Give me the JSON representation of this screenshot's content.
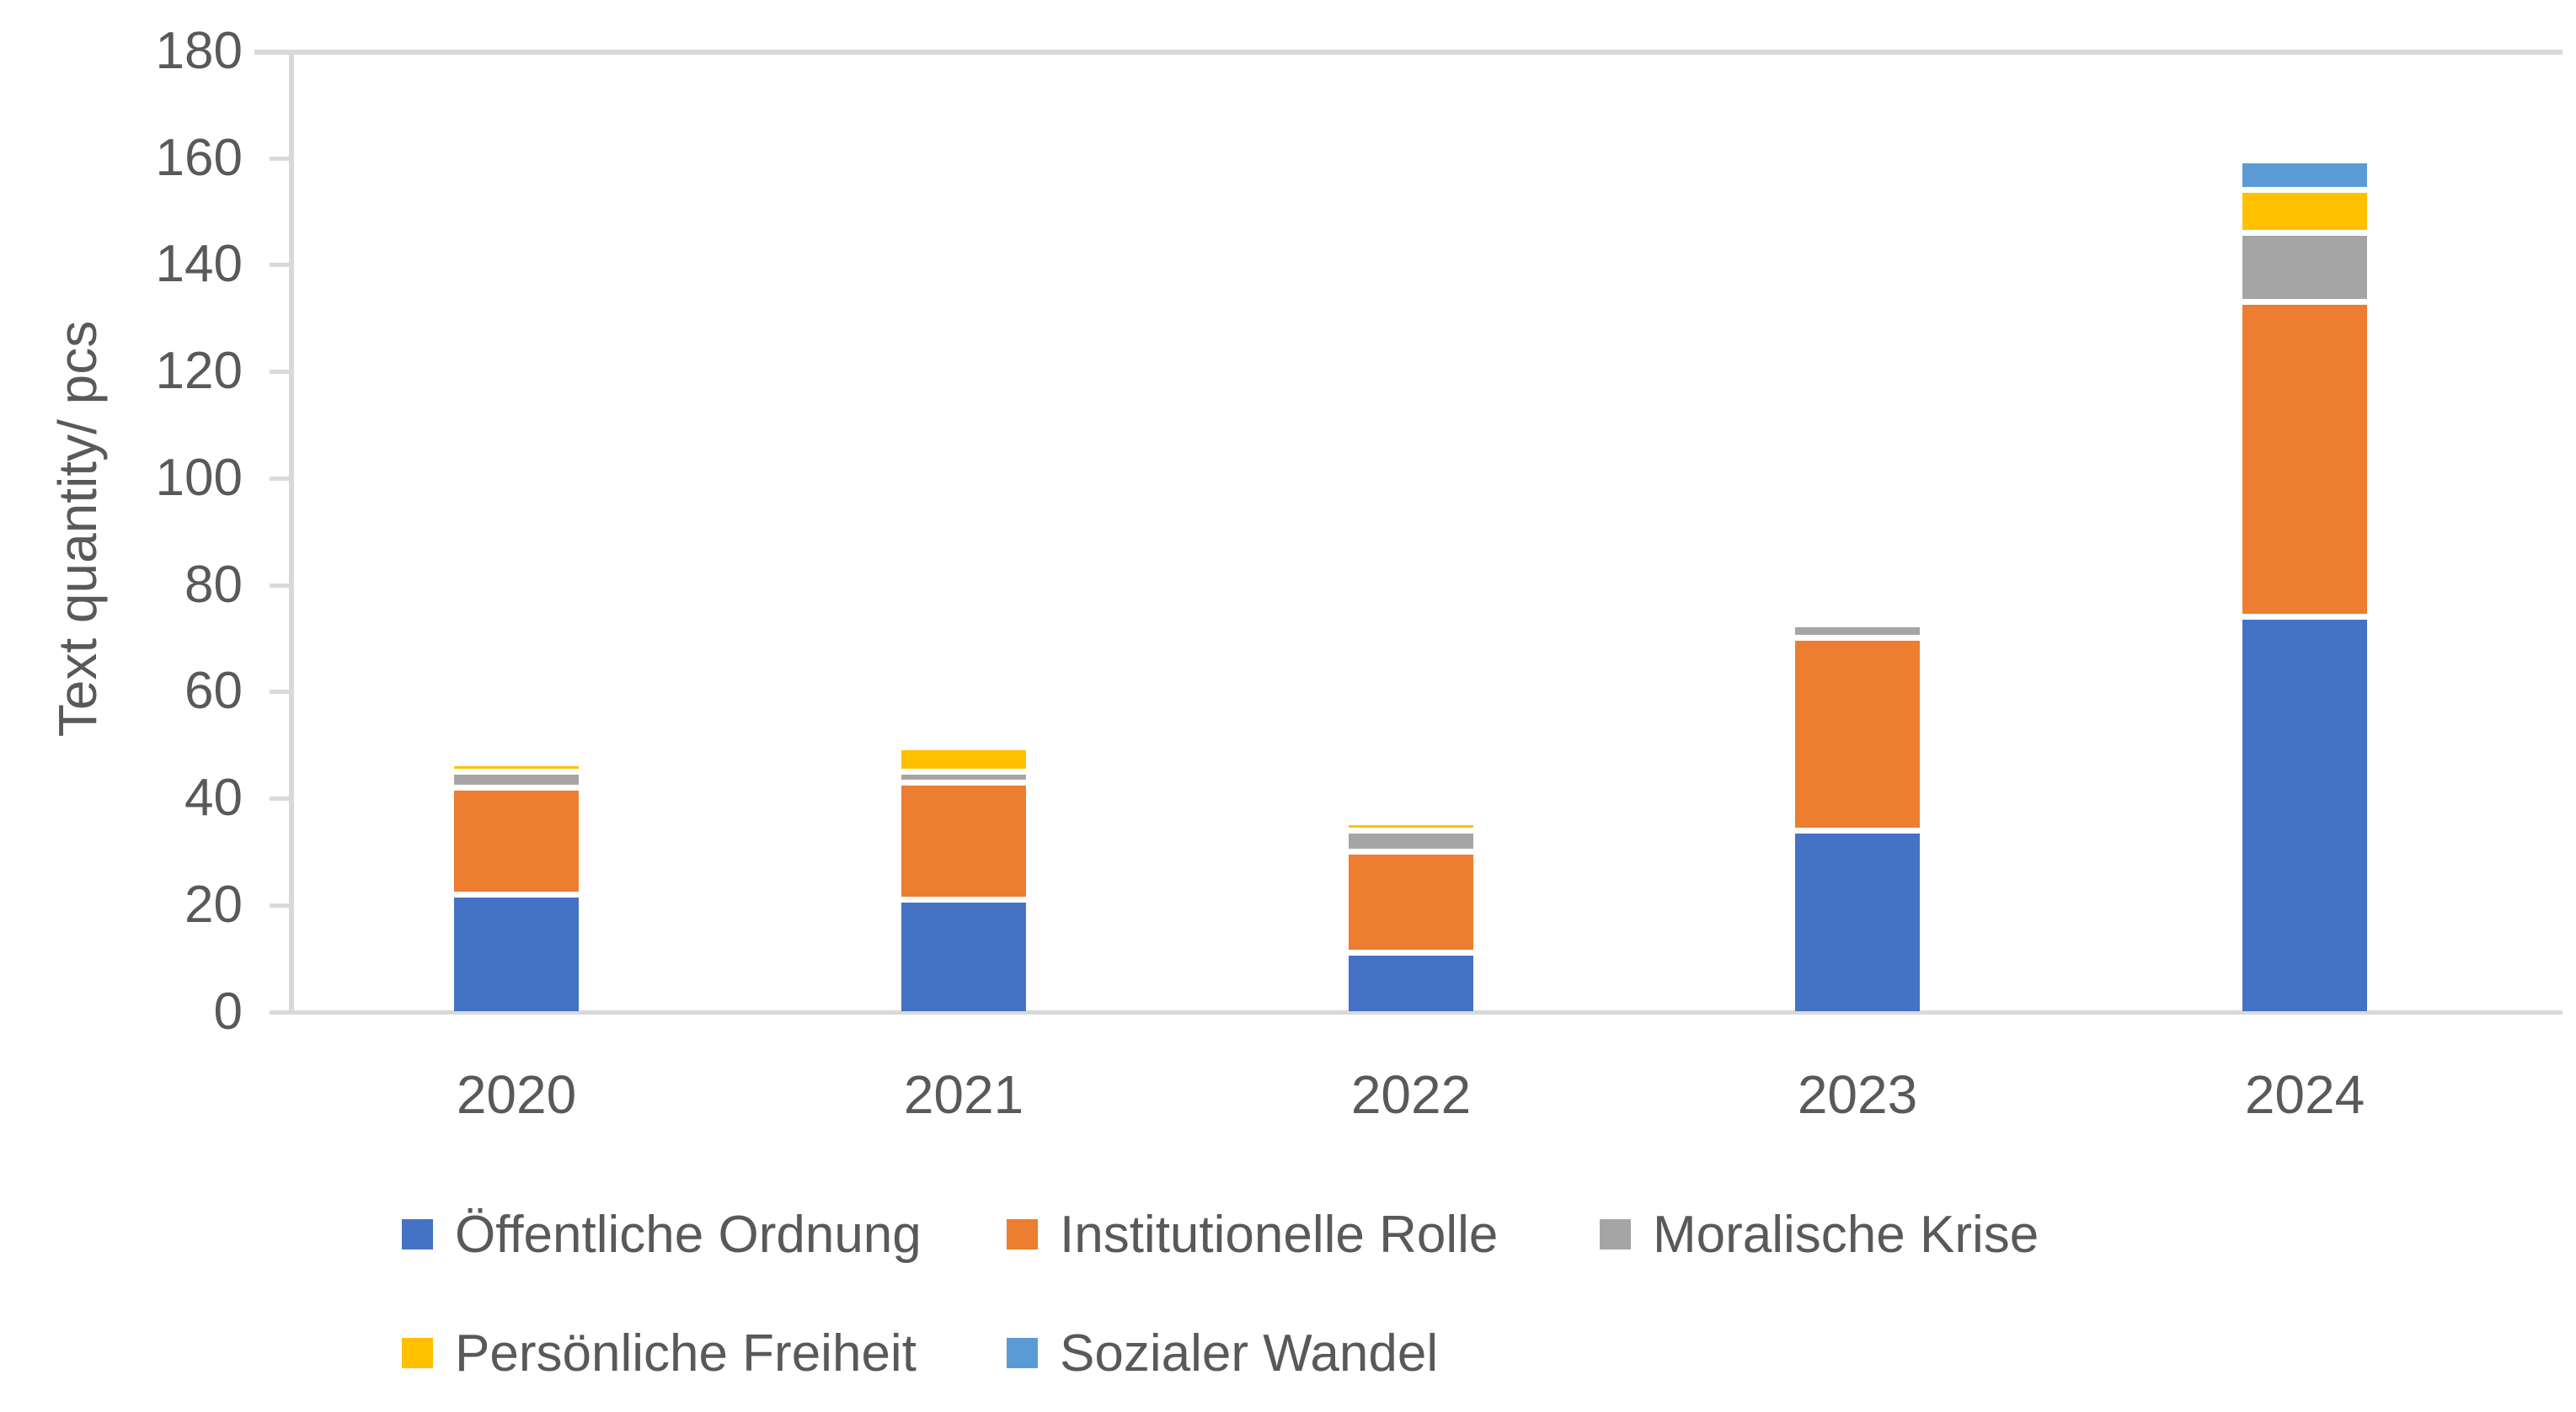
{
  "chart_data": {
    "type": "bar",
    "stacked": true,
    "title": "",
    "categories": [
      "2020",
      "2021",
      "2022",
      "2023",
      "2024"
    ],
    "series": [
      {
        "name": "Öffentliche Ordnung",
        "color": "#4472C4",
        "values": [
          22,
          21,
          11,
          34,
          74
        ]
      },
      {
        "name": "Institutionelle Rolle",
        "color": "#ED7D31",
        "values": [
          20,
          22,
          19,
          36,
          59
        ]
      },
      {
        "name": "Moralische Krise",
        "color": "#A5A5A5",
        "values": [
          3,
          2,
          4,
          2,
          13
        ]
      },
      {
        "name": "Persönliche Freiheit",
        "color": "#FFC000",
        "values": [
          1,
          4,
          1,
          0,
          8
        ]
      },
      {
        "name": "Sozialer Wandel",
        "color": "#5B9BD5",
        "values": [
          0,
          0,
          0,
          0,
          5
        ]
      }
    ],
    "totals": [
      46,
      49,
      35,
      72,
      159
    ],
    "xlabel": "",
    "ylabel": "Text quantity/ pcs",
    "ylim": [
      0,
      180
    ],
    "ytick_step": 20,
    "yticks": [
      "0",
      "20",
      "40",
      "60",
      "80",
      "100",
      "120",
      "140",
      "160",
      "180"
    ],
    "grid": false,
    "legend_position": "bottom",
    "axis_line_color": "#D9D9D9",
    "text_color": "#595959",
    "segment_gap_color": "#FFFFFF"
  }
}
